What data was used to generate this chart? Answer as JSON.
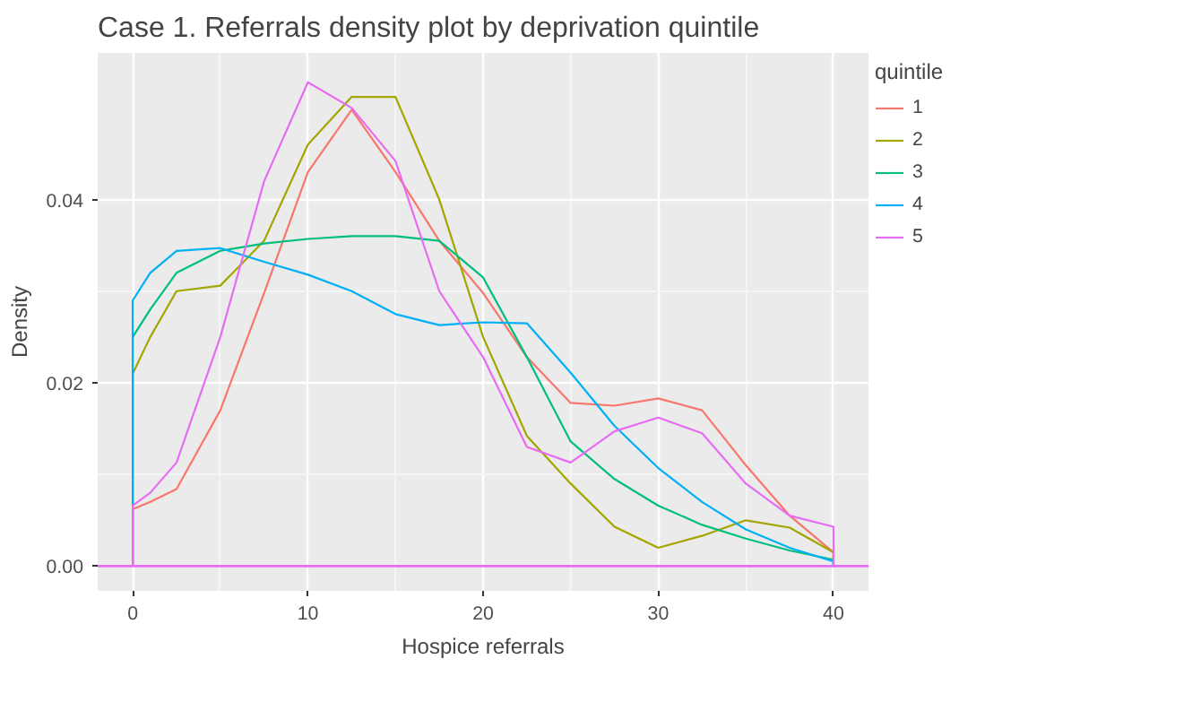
{
  "chart_data": {
    "type": "line",
    "title": "Case 1. Referrals density plot by deprivation quintile",
    "xlabel": "Hospice referrals",
    "ylabel": "Density",
    "legend_title": "quintile",
    "legend": "right",
    "grid": true,
    "xlim": [
      -2,
      42
    ],
    "ylim": [
      -0.0027,
      0.056
    ],
    "xticks": [
      0,
      10,
      20,
      30,
      40
    ],
    "yticks": [
      {
        "value": 0,
        "label": "0.00"
      },
      {
        "value": 0.02,
        "label": "0.02"
      },
      {
        "value": 0.04,
        "label": "0.04"
      }
    ],
    "x": [
      0,
      0,
      1,
      2.5,
      5,
      7.5,
      10,
      12.5,
      15,
      17.5,
      20,
      22.5,
      25,
      27.5,
      30,
      32.5,
      35,
      37.5,
      40,
      40
    ],
    "ref_lines": [
      {
        "axis": "y",
        "value": 0,
        "color": "#e76bf3"
      }
    ],
    "series": [
      {
        "name": "1",
        "color": "#f8766d",
        "values": [
          0,
          0.0062,
          0.007,
          0.0084,
          0.017,
          0.0298,
          0.043,
          0.0498,
          0.043,
          0.0355,
          0.0298,
          0.0228,
          0.0178,
          0.0175,
          0.0183,
          0.017,
          0.011,
          0.0055,
          0.0015,
          0
        ]
      },
      {
        "name": "2",
        "color": "#a3a500",
        "values": [
          0,
          0.021,
          0.025,
          0.03,
          0.0306,
          0.0355,
          0.046,
          0.0512,
          0.0512,
          0.04,
          0.025,
          0.0142,
          0.009,
          0.0043,
          0.002,
          0.0033,
          0.005,
          0.0042,
          0.0015,
          0
        ]
      },
      {
        "name": "3",
        "color": "#00bf7d",
        "values": [
          0,
          0.025,
          0.028,
          0.032,
          0.0344,
          0.0352,
          0.0357,
          0.036,
          0.036,
          0.0355,
          0.0315,
          0.0228,
          0.0136,
          0.0095,
          0.0066,
          0.0045,
          0.003,
          0.0017,
          0.0007,
          0
        ]
      },
      {
        "name": "4",
        "color": "#00b0f6",
        "values": [
          0,
          0.029,
          0.032,
          0.0344,
          0.0347,
          0.0332,
          0.0318,
          0.03,
          0.0275,
          0.0263,
          0.0266,
          0.0265,
          0.0211,
          0.0153,
          0.0107,
          0.007,
          0.004,
          0.002,
          0.0005,
          0
        ]
      },
      {
        "name": "5",
        "color": "#e76bf3",
        "values": [
          0,
          0.0066,
          0.008,
          0.0113,
          0.025,
          0.042,
          0.0528,
          0.05,
          0.0442,
          0.03,
          0.0228,
          0.013,
          0.0113,
          0.0147,
          0.0162,
          0.0145,
          0.009,
          0.0055,
          0.0043,
          0
        ]
      }
    ]
  }
}
